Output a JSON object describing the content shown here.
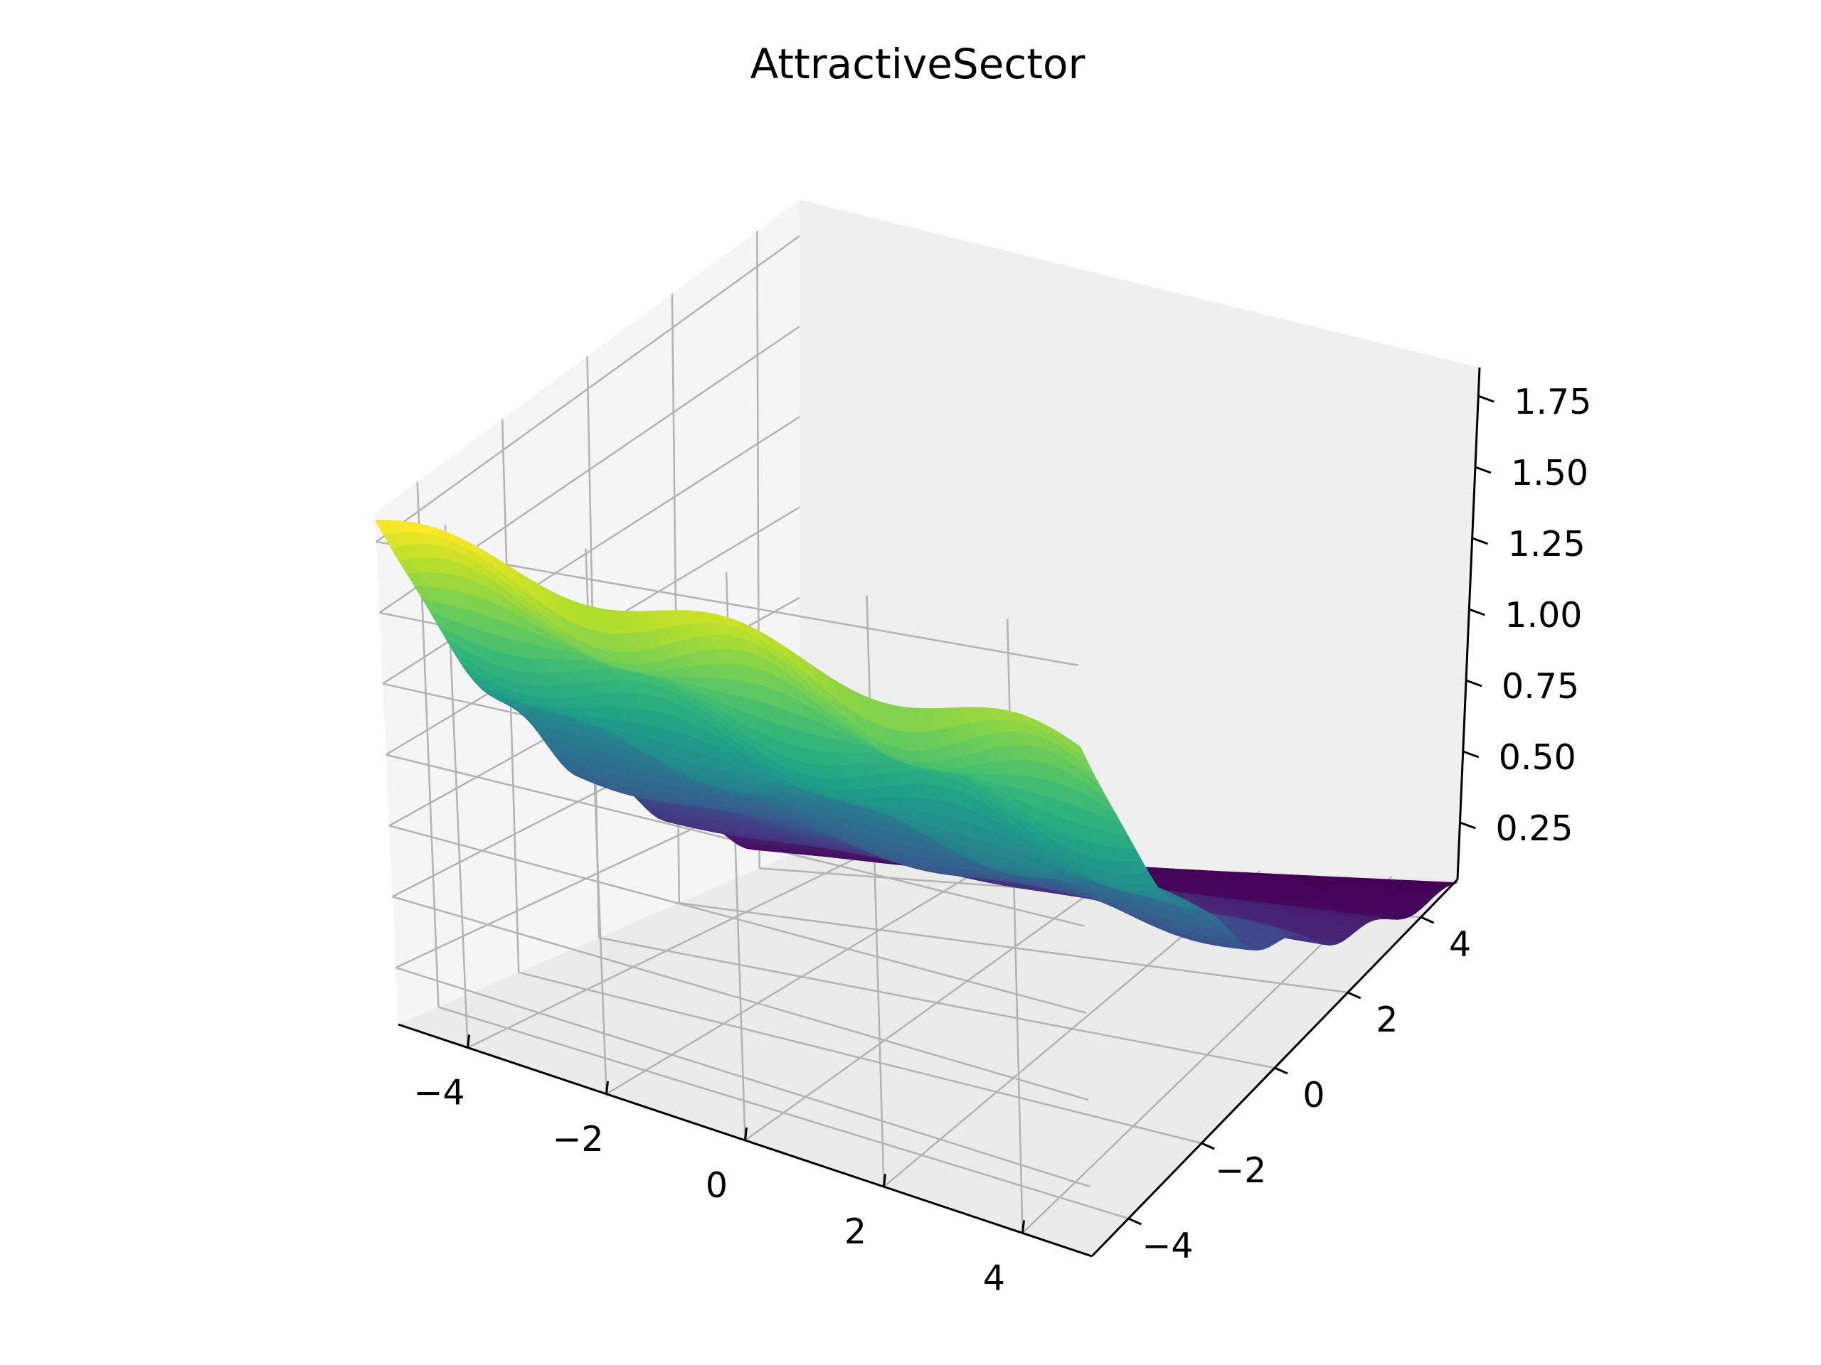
{
  "chart_data": {
    "type": "surface",
    "title": "AttractiveSector",
    "colormap": "viridis",
    "x": {
      "range": [
        -5,
        5
      ],
      "ticks": [
        -4,
        -2,
        0,
        2,
        4
      ],
      "tick_labels": [
        "−4",
        "−2",
        "0",
        "2",
        "4"
      ]
    },
    "y": {
      "range": [
        -5,
        5
      ],
      "ticks": [
        -4,
        -2,
        0,
        2,
        4
      ],
      "tick_labels": [
        "−4",
        "−2",
        "0",
        "2",
        "4"
      ]
    },
    "z": {
      "range": [
        0.05,
        1.85
      ],
      "ticks": [
        0.25,
        0.5,
        0.75,
        1.0,
        1.25,
        1.5,
        1.75
      ],
      "tick_labels": [
        "0.25",
        "0.50",
        "0.75",
        "1.00",
        "1.25",
        "1.50",
        "1.75"
      ]
    },
    "grid": true,
    "surface_corners": {
      "x_min_y_max": 1.82,
      "x_min_y_min": 1.51,
      "x_max_y_max": 0.09,
      "x_max_y_min": 0.06
    }
  }
}
